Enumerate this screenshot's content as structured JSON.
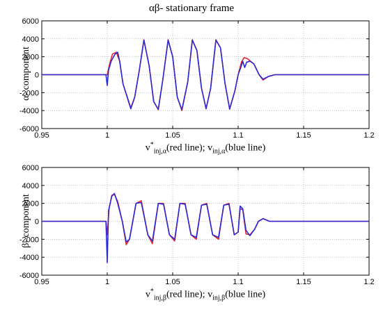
{
  "figure_title": "αβ- stationary frame",
  "colors": {
    "reference": "#e8212a",
    "measured": "#2a2ad6"
  },
  "chart_data": [
    {
      "type": "line",
      "ylabel": "α- component",
      "xlabel_parts": {
        "pre": "v",
        "sup": "*",
        "sub1": "inj,α",
        "mid": "(red line); v",
        "sub2": "inj,α",
        "post": "(blue line)"
      },
      "xlim": [
        0.95,
        1.2
      ],
      "ylim": [
        -6000,
        6000
      ],
      "xticks": [
        0.95,
        1,
        1.05,
        1.1,
        1.15,
        1.2
      ],
      "xtick_labels": [
        "0.95",
        "1",
        "1.05",
        "1.1",
        "1.15",
        "1.2"
      ],
      "yticks": [
        -6000,
        -4000,
        -2000,
        0,
        2000,
        4000,
        6000
      ],
      "ytick_labels": [
        "-6000",
        "-4000",
        "-2000",
        "0",
        "2000",
        "4000",
        "6000"
      ],
      "grid": true,
      "series": [
        {
          "color": "#e8212a",
          "x": [
            0.95,
            0.99,
            0.999,
            1.0,
            1.002,
            1.004,
            1.007,
            1.0095,
            1.012,
            1.018,
            1.021,
            1.0245,
            1.028,
            1.032,
            1.0355,
            1.039,
            1.0425,
            1.0465,
            1.05,
            1.0535,
            1.057,
            1.0615,
            1.065,
            1.0685,
            1.072,
            1.0755,
            1.079,
            1.083,
            1.0865,
            1.09,
            1.0935,
            1.0975,
            1.1,
            1.1025,
            1.1045,
            1.107,
            1.1095,
            1.112,
            1.116,
            1.119,
            1.123,
            1.128,
            1.135,
            1.15,
            1.2
          ],
          "y": [
            0,
            0,
            0,
            0,
            1300,
            2300,
            2500,
            1500,
            -1000,
            -3700,
            -2500,
            500,
            3900,
            1000,
            -3000,
            -3900,
            -500,
            3900,
            2000,
            -2500,
            -4000,
            -800,
            3900,
            2700,
            -1500,
            -3800,
            -1500,
            3900,
            3000,
            -1000,
            -3800,
            -1800,
            0,
            1400,
            1900,
            1800,
            1500,
            1200,
            0,
            -600,
            -200,
            0,
            0,
            0,
            0
          ]
        },
        {
          "color": "#2a2ad6",
          "x": [
            0.95,
            0.99,
            0.999,
            1.0,
            1.001,
            1.003,
            1.006,
            1.008,
            1.0095,
            1.012,
            1.018,
            1.021,
            1.0245,
            1.028,
            1.032,
            1.0355,
            1.039,
            1.0425,
            1.0465,
            1.05,
            1.0535,
            1.057,
            1.0615,
            1.065,
            1.0685,
            1.072,
            1.0755,
            1.079,
            1.083,
            1.0865,
            1.09,
            1.0935,
            1.0975,
            1.1,
            1.102,
            1.1035,
            1.105,
            1.1065,
            1.109,
            1.112,
            1.116,
            1.119,
            1.123,
            1.128,
            1.135,
            1.15,
            1.2
          ],
          "y": [
            0,
            0,
            0,
            -1200,
            500,
            1500,
            2300,
            2500,
            1500,
            -1000,
            -3800,
            -2500,
            500,
            3850,
            1000,
            -3000,
            -3850,
            -500,
            3850,
            2000,
            -2500,
            -3900,
            -800,
            3850,
            2700,
            -1500,
            -3800,
            -1500,
            3850,
            3000,
            -1000,
            -3850,
            -1800,
            0,
            800,
            1500,
            800,
            1400,
            1500,
            1200,
            0,
            -500,
            -200,
            0,
            0,
            0,
            0
          ]
        }
      ]
    },
    {
      "type": "line",
      "ylabel": "β- component",
      "xlabel_parts": {
        "pre": "v",
        "sup": "*",
        "sub1": "inj,β",
        "mid": "(red line); v",
        "sub2": "inj,β",
        "post": "(blue line)"
      },
      "xlim": [
        0.95,
        1.2
      ],
      "ylim": [
        -6000,
        6000
      ],
      "xticks": [
        0.95,
        1,
        1.05,
        1.1,
        1.15,
        1.2
      ],
      "xtick_labels": [
        "0.95",
        "1",
        "1.05",
        "1.1",
        "1.15",
        "1.2"
      ],
      "yticks": [
        -6000,
        -4000,
        -2000,
        0,
        2000,
        4000,
        6000
      ],
      "ytick_labels": [
        "-6000",
        "-4000",
        "-2000",
        "0",
        "2000",
        "4000",
        "6000"
      ],
      "grid": true,
      "series": [
        {
          "color": "#e8212a",
          "x": [
            0.95,
            0.99,
            0.999,
            1.0,
            1.0015,
            1.0035,
            1.0055,
            1.008,
            1.0115,
            1.0145,
            1.017,
            1.022,
            1.026,
            1.031,
            1.0345,
            1.039,
            1.043,
            1.0475,
            1.0515,
            1.0555,
            1.0595,
            1.064,
            1.068,
            1.072,
            1.076,
            1.0805,
            1.085,
            1.089,
            1.093,
            1.097,
            1.1,
            1.1015,
            1.1035,
            1.106,
            1.109,
            1.1125,
            1.1155,
            1.119,
            1.124,
            1.13,
            1.15,
            1.2
          ],
          "y": [
            0,
            0,
            0,
            -1500,
            1500,
            2900,
            3000,
            2200,
            0,
            -2600,
            -2000,
            2000,
            2300,
            -1500,
            -2500,
            2000,
            2000,
            -1500,
            -2200,
            2000,
            2000,
            -1500,
            -2000,
            1800,
            2000,
            -1500,
            -2000,
            1800,
            2000,
            -1500,
            -1200,
            1400,
            1300,
            -1400,
            -1500,
            -900,
            0,
            300,
            0,
            0,
            0,
            0
          ]
        },
        {
          "color": "#2a2ad6",
          "x": [
            0.95,
            0.99,
            0.999,
            1.0,
            1.001,
            1.0035,
            1.0055,
            1.008,
            1.0115,
            1.0145,
            1.017,
            1.022,
            1.026,
            1.031,
            1.0345,
            1.039,
            1.043,
            1.0475,
            1.0515,
            1.0555,
            1.0595,
            1.064,
            1.068,
            1.072,
            1.076,
            1.0805,
            1.085,
            1.089,
            1.093,
            1.097,
            1.1,
            1.1015,
            1.1035,
            1.106,
            1.109,
            1.1125,
            1.1155,
            1.119,
            1.124,
            1.13,
            1.15,
            1.2
          ],
          "y": [
            0,
            0,
            0,
            -4600,
            1200,
            2800,
            3100,
            2000,
            0,
            -2300,
            -2000,
            2000,
            2100,
            -1500,
            -2200,
            2000,
            1900,
            -1500,
            -2000,
            2000,
            1900,
            -1500,
            -1800,
            1800,
            1900,
            -1500,
            -1800,
            1800,
            1900,
            -1500,
            -1200,
            1700,
            1400,
            -1000,
            -1600,
            -900,
            0,
            300,
            0,
            0,
            0,
            0
          ]
        }
      ]
    }
  ]
}
